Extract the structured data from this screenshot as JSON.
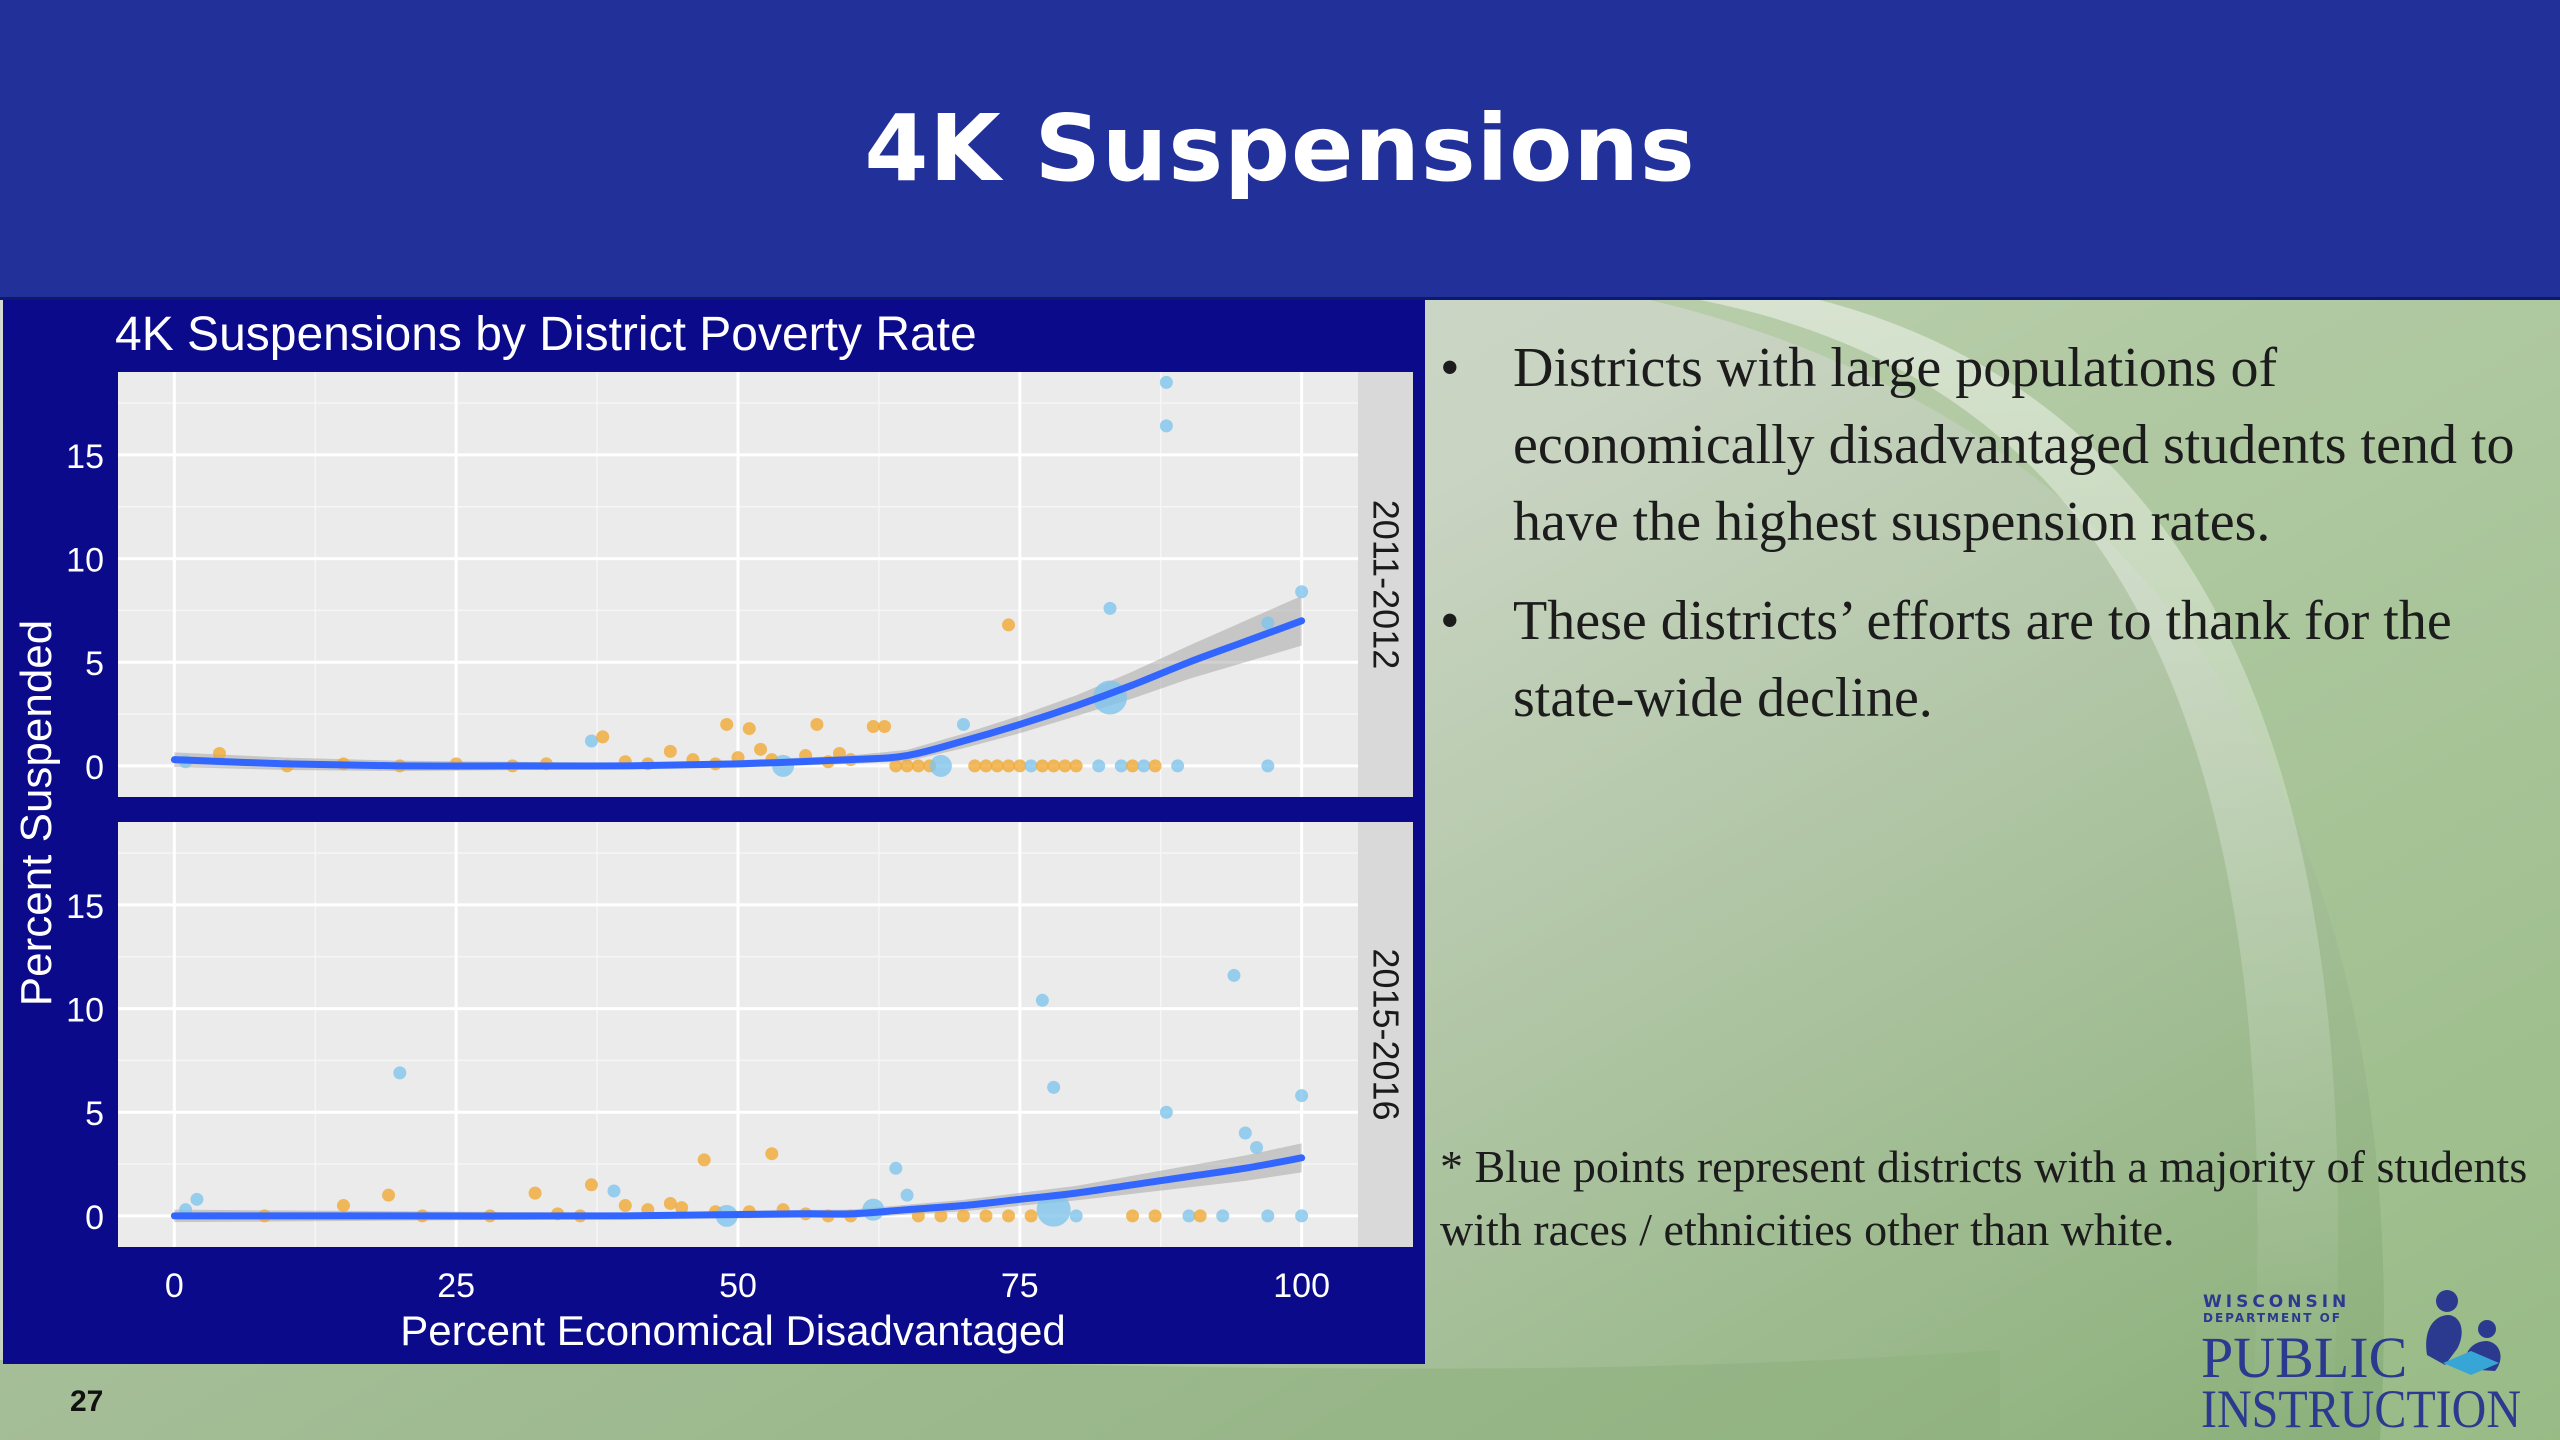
{
  "slide": {
    "title": "4K Suspensions",
    "page_number": "27",
    "bullets": [
      "Districts with large populations of economically disadvantaged students tend to have the highest suspension rates.",
      "These districts’ efforts are to thank for the state-wide decline."
    ],
    "bullet_glyph": "•",
    "footnote": "* Blue points represent districts with a majority of students with races / ethnicities other than white.",
    "logo": {
      "line1": "WISCONSIN",
      "line2": "DEPARTMENT OF",
      "line3": "PUBLIC",
      "line4": "INSTRUCTION",
      "icon": "reading-figures-icon"
    }
  },
  "colors": {
    "header": "#22309a",
    "chart_frame": "#0a0a8a",
    "panel_bg": "#ebebeb",
    "strip_bg": "#d9d9d9",
    "trend": "#3366ff",
    "ribbon": "#999999",
    "majority_white": "#f0a830",
    "majority_nonwhite": "#7fc4ec"
  },
  "chart_data": {
    "type": "scatter",
    "title": "4K Suspensions by District Poverty Rate",
    "xlabel": "Percent Economical Disadvantaged",
    "ylabel": "Percent Suspended",
    "xlim": [
      -5,
      105
    ],
    "ylim": [
      -1.5,
      19
    ],
    "x_ticks": [
      0,
      25,
      50,
      75,
      100
    ],
    "y_ticks": [
      0,
      5,
      10,
      15
    ],
    "grid": true,
    "legend": "none",
    "panels": [
      {
        "label": "2011-2012",
        "trend": [
          [
            0,
            0.3
          ],
          [
            10,
            0.1
          ],
          [
            20,
            0.0
          ],
          [
            30,
            0.0
          ],
          [
            40,
            0.0
          ],
          [
            50,
            0.1
          ],
          [
            60,
            0.3
          ],
          [
            65,
            0.5
          ],
          [
            70,
            1.2
          ],
          [
            75,
            2.0
          ],
          [
            80,
            2.9
          ],
          [
            85,
            3.9
          ],
          [
            90,
            5.0
          ],
          [
            95,
            6.0
          ],
          [
            100,
            7.0
          ]
        ],
        "band_halfwidth": [
          [
            0,
            0.35
          ],
          [
            40,
            0.15
          ],
          [
            60,
            0.2
          ],
          [
            80,
            0.5
          ],
          [
            90,
            0.8
          ],
          [
            100,
            1.2
          ]
        ],
        "points": [
          {
            "x": 1,
            "y": 0.2,
            "g": "nonwhite",
            "s": 1
          },
          {
            "x": 4,
            "y": 0.6,
            "g": "white",
            "s": 1
          },
          {
            "x": 10,
            "y": 0.0,
            "g": "white",
            "s": 1
          },
          {
            "x": 15,
            "y": 0.1,
            "g": "white",
            "s": 1
          },
          {
            "x": 20,
            "y": 0.0,
            "g": "white",
            "s": 1
          },
          {
            "x": 25,
            "y": 0.1,
            "g": "white",
            "s": 1
          },
          {
            "x": 30,
            "y": 0.0,
            "g": "white",
            "s": 1
          },
          {
            "x": 33,
            "y": 0.1,
            "g": "white",
            "s": 1
          },
          {
            "x": 37,
            "y": 1.2,
            "g": "nonwhite",
            "s": 1
          },
          {
            "x": 38,
            "y": 1.4,
            "g": "white",
            "s": 1
          },
          {
            "x": 40,
            "y": 0.2,
            "g": "white",
            "s": 1
          },
          {
            "x": 42,
            "y": 0.1,
            "g": "white",
            "s": 1
          },
          {
            "x": 44,
            "y": 0.7,
            "g": "white",
            "s": 1
          },
          {
            "x": 46,
            "y": 0.3,
            "g": "white",
            "s": 1
          },
          {
            "x": 48,
            "y": 0.1,
            "g": "white",
            "s": 1
          },
          {
            "x": 49,
            "y": 2.0,
            "g": "white",
            "s": 1
          },
          {
            "x": 50,
            "y": 0.4,
            "g": "white",
            "s": 1
          },
          {
            "x": 51,
            "y": 1.8,
            "g": "white",
            "s": 1
          },
          {
            "x": 52,
            "y": 0.8,
            "g": "white",
            "s": 1
          },
          {
            "x": 53,
            "y": 0.3,
            "g": "white",
            "s": 1
          },
          {
            "x": 54,
            "y": 0.0,
            "g": "nonwhite",
            "s": 2
          },
          {
            "x": 56,
            "y": 0.5,
            "g": "white",
            "s": 1
          },
          {
            "x": 57,
            "y": 2.0,
            "g": "white",
            "s": 1
          },
          {
            "x": 58,
            "y": 0.2,
            "g": "white",
            "s": 1
          },
          {
            "x": 59,
            "y": 0.6,
            "g": "white",
            "s": 1
          },
          {
            "x": 60,
            "y": 0.3,
            "g": "white",
            "s": 1
          },
          {
            "x": 62,
            "y": 1.9,
            "g": "white",
            "s": 1
          },
          {
            "x": 63,
            "y": 1.9,
            "g": "white",
            "s": 1
          },
          {
            "x": 64,
            "y": 0.0,
            "g": "white",
            "s": 1
          },
          {
            "x": 65,
            "y": 0.0,
            "g": "white",
            "s": 1
          },
          {
            "x": 66,
            "y": 0.0,
            "g": "white",
            "s": 1
          },
          {
            "x": 67,
            "y": 0.0,
            "g": "white",
            "s": 1
          },
          {
            "x": 68,
            "y": 0.0,
            "g": "nonwhite",
            "s": 2
          },
          {
            "x": 70,
            "y": 2.0,
            "g": "nonwhite",
            "s": 1
          },
          {
            "x": 71,
            "y": 0.0,
            "g": "white",
            "s": 1
          },
          {
            "x": 72,
            "y": 0.0,
            "g": "white",
            "s": 1
          },
          {
            "x": 73,
            "y": 0.0,
            "g": "white",
            "s": 1
          },
          {
            "x": 74,
            "y": 0.0,
            "g": "white",
            "s": 1
          },
          {
            "x": 75,
            "y": 0.0,
            "g": "white",
            "s": 1
          },
          {
            "x": 76,
            "y": 0.0,
            "g": "nonwhite",
            "s": 1
          },
          {
            "x": 77,
            "y": 0.0,
            "g": "white",
            "s": 1
          },
          {
            "x": 78,
            "y": 0.0,
            "g": "white",
            "s": 1
          },
          {
            "x": 79,
            "y": 0.0,
            "g": "white",
            "s": 1
          },
          {
            "x": 80,
            "y": 0.0,
            "g": "white",
            "s": 1
          },
          {
            "x": 82,
            "y": 0.0,
            "g": "nonwhite",
            "s": 1
          },
          {
            "x": 83,
            "y": 3.3,
            "g": "nonwhite",
            "s": 3
          },
          {
            "x": 84,
            "y": 0.0,
            "g": "nonwhite",
            "s": 1
          },
          {
            "x": 85,
            "y": 0.0,
            "g": "white",
            "s": 1
          },
          {
            "x": 86,
            "y": 0.0,
            "g": "nonwhite",
            "s": 1
          },
          {
            "x": 87,
            "y": 0.0,
            "g": "white",
            "s": 1
          },
          {
            "x": 89,
            "y": 0.0,
            "g": "nonwhite",
            "s": 1
          },
          {
            "x": 74,
            "y": 6.8,
            "g": "white",
            "s": 1
          },
          {
            "x": 83,
            "y": 7.6,
            "g": "nonwhite",
            "s": 1
          },
          {
            "x": 88,
            "y": 18.5,
            "g": "nonwhite",
            "s": 1
          },
          {
            "x": 88,
            "y": 16.4,
            "g": "nonwhite",
            "s": 1
          },
          {
            "x": 97,
            "y": 0.0,
            "g": "nonwhite",
            "s": 1
          },
          {
            "x": 97,
            "y": 6.9,
            "g": "nonwhite",
            "s": 1
          },
          {
            "x": 100,
            "y": 8.4,
            "g": "nonwhite",
            "s": 1
          }
        ]
      },
      {
        "label": "2015-2016",
        "trend": [
          [
            0,
            0.0
          ],
          [
            20,
            0.0
          ],
          [
            40,
            0.0
          ],
          [
            55,
            0.1
          ],
          [
            60,
            0.1
          ],
          [
            65,
            0.3
          ],
          [
            70,
            0.5
          ],
          [
            75,
            0.8
          ],
          [
            80,
            1.1
          ],
          [
            85,
            1.5
          ],
          [
            90,
            1.9
          ],
          [
            95,
            2.3
          ],
          [
            100,
            2.8
          ]
        ],
        "band_halfwidth": [
          [
            0,
            0.3
          ],
          [
            40,
            0.15
          ],
          [
            60,
            0.2
          ],
          [
            80,
            0.35
          ],
          [
            100,
            0.7
          ]
        ],
        "points": [
          {
            "x": 1,
            "y": 0.3,
            "g": "nonwhite",
            "s": 1
          },
          {
            "x": 2,
            "y": 0.8,
            "g": "nonwhite",
            "s": 1
          },
          {
            "x": 8,
            "y": 0.0,
            "g": "white",
            "s": 1
          },
          {
            "x": 15,
            "y": 0.5,
            "g": "white",
            "s": 1
          },
          {
            "x": 19,
            "y": 1.0,
            "g": "white",
            "s": 1
          },
          {
            "x": 20,
            "y": 6.9,
            "g": "nonwhite",
            "s": 1
          },
          {
            "x": 22,
            "y": 0.0,
            "g": "white",
            "s": 1
          },
          {
            "x": 28,
            "y": 0.0,
            "g": "white",
            "s": 1
          },
          {
            "x": 32,
            "y": 1.1,
            "g": "white",
            "s": 1
          },
          {
            "x": 34,
            "y": 0.1,
            "g": "white",
            "s": 1
          },
          {
            "x": 36,
            "y": 0.0,
            "g": "white",
            "s": 1
          },
          {
            "x": 37,
            "y": 1.5,
            "g": "white",
            "s": 1
          },
          {
            "x": 39,
            "y": 1.2,
            "g": "nonwhite",
            "s": 1
          },
          {
            "x": 40,
            "y": 0.5,
            "g": "white",
            "s": 1
          },
          {
            "x": 42,
            "y": 0.3,
            "g": "white",
            "s": 1
          },
          {
            "x": 44,
            "y": 0.6,
            "g": "white",
            "s": 1
          },
          {
            "x": 45,
            "y": 0.4,
            "g": "white",
            "s": 1
          },
          {
            "x": 47,
            "y": 2.7,
            "g": "white",
            "s": 1
          },
          {
            "x": 48,
            "y": 0.2,
            "g": "white",
            "s": 1
          },
          {
            "x": 49,
            "y": 0.0,
            "g": "nonwhite",
            "s": 2
          },
          {
            "x": 51,
            "y": 0.2,
            "g": "white",
            "s": 1
          },
          {
            "x": 53,
            "y": 3.0,
            "g": "white",
            "s": 1
          },
          {
            "x": 54,
            "y": 0.3,
            "g": "white",
            "s": 1
          },
          {
            "x": 56,
            "y": 0.1,
            "g": "white",
            "s": 1
          },
          {
            "x": 58,
            "y": 0.0,
            "g": "white",
            "s": 1
          },
          {
            "x": 60,
            "y": 0.0,
            "g": "white",
            "s": 1
          },
          {
            "x": 62,
            "y": 0.3,
            "g": "nonwhite",
            "s": 2
          },
          {
            "x": 64,
            "y": 2.3,
            "g": "nonwhite",
            "s": 1
          },
          {
            "x": 65,
            "y": 1.0,
            "g": "nonwhite",
            "s": 1
          },
          {
            "x": 66,
            "y": 0.0,
            "g": "white",
            "s": 1
          },
          {
            "x": 68,
            "y": 0.0,
            "g": "white",
            "s": 1
          },
          {
            "x": 70,
            "y": 0.0,
            "g": "white",
            "s": 1
          },
          {
            "x": 72,
            "y": 0.0,
            "g": "white",
            "s": 1
          },
          {
            "x": 74,
            "y": 0.0,
            "g": "white",
            "s": 1
          },
          {
            "x": 76,
            "y": 0.0,
            "g": "white",
            "s": 1
          },
          {
            "x": 78,
            "y": 0.3,
            "g": "nonwhite",
            "s": 3
          },
          {
            "x": 77,
            "y": 10.4,
            "g": "nonwhite",
            "s": 1
          },
          {
            "x": 78,
            "y": 6.2,
            "g": "nonwhite",
            "s": 1
          },
          {
            "x": 80,
            "y": 0.0,
            "g": "nonwhite",
            "s": 1
          },
          {
            "x": 85,
            "y": 0.0,
            "g": "white",
            "s": 1
          },
          {
            "x": 87,
            "y": 0.0,
            "g": "white",
            "s": 1
          },
          {
            "x": 88,
            "y": 5.0,
            "g": "nonwhite",
            "s": 1
          },
          {
            "x": 90,
            "y": 0.0,
            "g": "nonwhite",
            "s": 1
          },
          {
            "x": 91,
            "y": 0.0,
            "g": "white",
            "s": 1
          },
          {
            "x": 93,
            "y": 0.0,
            "g": "nonwhite",
            "s": 1
          },
          {
            "x": 94,
            "y": 11.6,
            "g": "nonwhite",
            "s": 1
          },
          {
            "x": 95,
            "y": 4.0,
            "g": "nonwhite",
            "s": 1
          },
          {
            "x": 96,
            "y": 3.3,
            "g": "nonwhite",
            "s": 1
          },
          {
            "x": 97,
            "y": 0.0,
            "g": "nonwhite",
            "s": 1
          },
          {
            "x": 100,
            "y": 5.8,
            "g": "nonwhite",
            "s": 1
          },
          {
            "x": 100,
            "y": 0.0,
            "g": "nonwhite",
            "s": 1
          }
        ]
      }
    ]
  }
}
